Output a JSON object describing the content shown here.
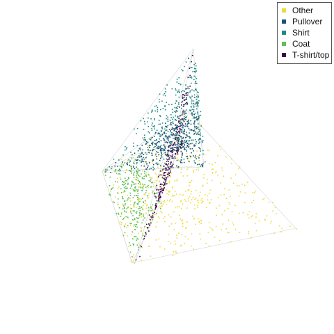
{
  "chart_data": {
    "type": "scatter",
    "title": "",
    "xlabel": "",
    "ylabel": "",
    "axes_visible": false,
    "grid": false,
    "legend_position": "top-right",
    "background": "#ffffff",
    "edge_color": "#d6d6d6",
    "series": [
      {
        "name": "Other",
        "color": "#f2d93a",
        "hull": [
          [
            190,
            378
          ],
          [
            147,
            246
          ],
          [
            270,
            160
          ],
          [
            425,
            328
          ]
        ]
      },
      {
        "name": "Pullover",
        "color": "#1c4f77",
        "hull": [
          [
            149,
            248
          ],
          [
            293,
            238
          ],
          [
            282,
            140
          ],
          [
            253,
            200
          ]
        ]
      },
      {
        "name": "Shirt",
        "color": "#1f8b82",
        "hull": [
          [
            278,
            70
          ],
          [
            147,
            246
          ],
          [
            293,
            240
          ],
          [
            282,
            130
          ]
        ]
      },
      {
        "name": "Coat",
        "color": "#5bc15e",
        "hull": [
          [
            147,
            246
          ],
          [
            190,
            378
          ],
          [
            232,
            290
          ],
          [
            200,
            220
          ]
        ]
      },
      {
        "name": "T-shirt/top",
        "color": "#3d0a4f",
        "hull": [
          [
            278,
            70
          ],
          [
            193,
            380
          ],
          [
            262,
            200
          ],
          [
            241,
            250
          ]
        ]
      }
    ]
  }
}
